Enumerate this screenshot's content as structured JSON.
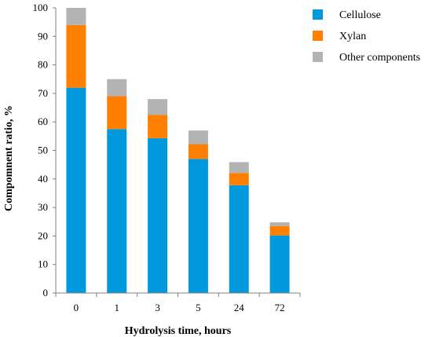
{
  "chart_data": {
    "type": "bar",
    "stacked": true,
    "categories": [
      "0",
      "1",
      "3",
      "5",
      "24",
      "72"
    ],
    "series": [
      {
        "name": "Cellulose",
        "color": "#0099dd",
        "values": [
          72,
          57.5,
          54.3,
          47,
          37.8,
          20.2
        ]
      },
      {
        "name": "Xylan",
        "color": "#ff8000",
        "values": [
          22,
          11.5,
          8.2,
          5.2,
          4.3,
          3.3
        ]
      },
      {
        "name": "Other components",
        "color": "#b3b3b3",
        "values": [
          6,
          6,
          5.5,
          4.8,
          3.8,
          1.3
        ]
      }
    ],
    "xlabel": "Hydrolysis time, hours",
    "ylabel": "Compomnent ratio, %",
    "ylim": [
      0,
      100
    ],
    "yticks": [
      0,
      10,
      20,
      30,
      40,
      50,
      60,
      70,
      80,
      90,
      100
    ],
    "grid": false,
    "legend": "top-right"
  }
}
